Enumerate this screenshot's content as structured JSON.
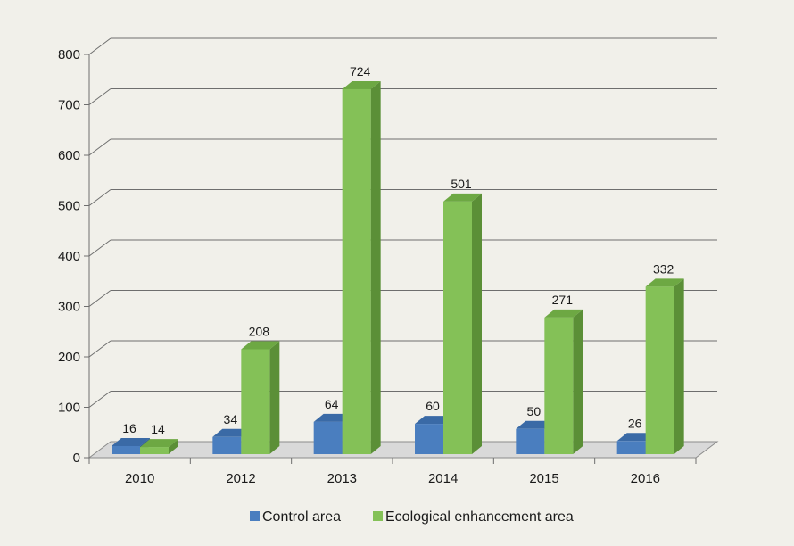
{
  "chart_data": {
    "type": "bar",
    "categories": [
      "2010",
      "2012",
      "2013",
      "2014",
      "2015",
      "2016"
    ],
    "series": [
      {
        "name": "Control area",
        "values": [
          16,
          34,
          64,
          60,
          50,
          26
        ],
        "color": "#4a7ebf",
        "color_side": "#2f5d94",
        "color_top": "#3a6aa6"
      },
      {
        "name": "Ecological enhancement area",
        "values": [
          14,
          208,
          724,
          501,
          271,
          332
        ],
        "color": "#84c157",
        "color_side": "#5b8f37",
        "color_top": "#6da843"
      }
    ],
    "yticks": [
      "0",
      "100",
      "200",
      "300",
      "400",
      "500",
      "600",
      "700",
      "800"
    ],
    "ylim": [
      0,
      800
    ],
    "grid": true,
    "legend": "bottom",
    "title": "",
    "xlabel": "",
    "ylabel": ""
  }
}
